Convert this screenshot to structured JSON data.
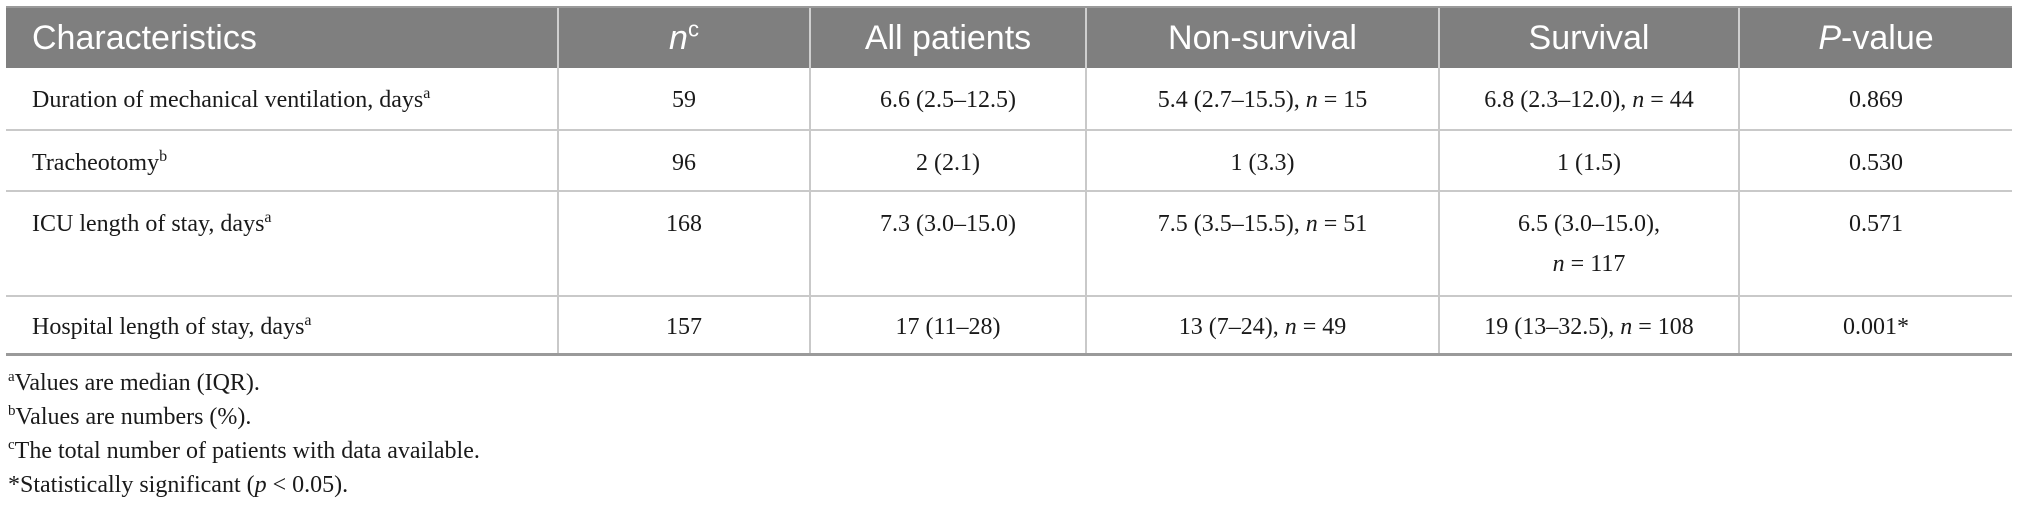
{
  "table": {
    "headers": {
      "characteristics": "Characteristics",
      "n": "n",
      "n_sup": "c",
      "all_patients": "All patients",
      "non_survival": "Non-survival",
      "survival": "Survival",
      "p_value_italic": "P",
      "p_value_rest": "-value"
    },
    "rows": [
      {
        "label": "Duration of mechanical ventilation, days",
        "label_sup": "a",
        "n": "59",
        "all": "6.6 (2.5–12.5)",
        "non_survival": "5.4 (2.7–15.5), ",
        "non_survival_n": "n",
        "non_survival_n_val": " = 15",
        "survival": "6.8 (2.3–12.0), ",
        "survival_n": "n",
        "survival_n_val": " = 44",
        "p": "0.869"
      },
      {
        "label": "Tracheotomy",
        "label_sup": "b",
        "n": "96",
        "all": "2 (2.1)",
        "non_survival": "1 (3.3)",
        "survival": "1 (1.5)",
        "p": "0.530"
      },
      {
        "label": "ICU length of stay, days",
        "label_sup": "a",
        "n": "168",
        "all": "7.3 (3.0–15.0)",
        "non_survival": "7.5 (3.5–15.5), ",
        "non_survival_n": "n",
        "non_survival_n_val": " = 51",
        "survival": "6.5 (3.0–15.0),",
        "survival_n": "n",
        "survival_n_val": " = 117",
        "p": "0.571"
      },
      {
        "label": "Hospital length of stay, days",
        "label_sup": "a",
        "n": "157",
        "all": "17 (11–28)",
        "non_survival": "13 (7–24), ",
        "non_survival_n": "n",
        "non_survival_n_val": " = 49",
        "survival": "19 (13–32.5), ",
        "survival_n": "n",
        "survival_n_val": " = 108",
        "p": "0.001*"
      }
    ]
  },
  "footnotes": [
    {
      "mark": "a",
      "text": "Values are median (IQR)."
    },
    {
      "mark": "b",
      "text": "Values are numbers (%)."
    },
    {
      "mark": "c",
      "text": "The total number of patients with data available."
    },
    {
      "mark": "",
      "text": "*Statistically significant (",
      "italic": "p",
      "after": " < 0.05)."
    }
  ],
  "colors": {
    "header_bg": "#7f7f7f",
    "header_text": "#ffffff",
    "grid": "#c9c9c9"
  }
}
